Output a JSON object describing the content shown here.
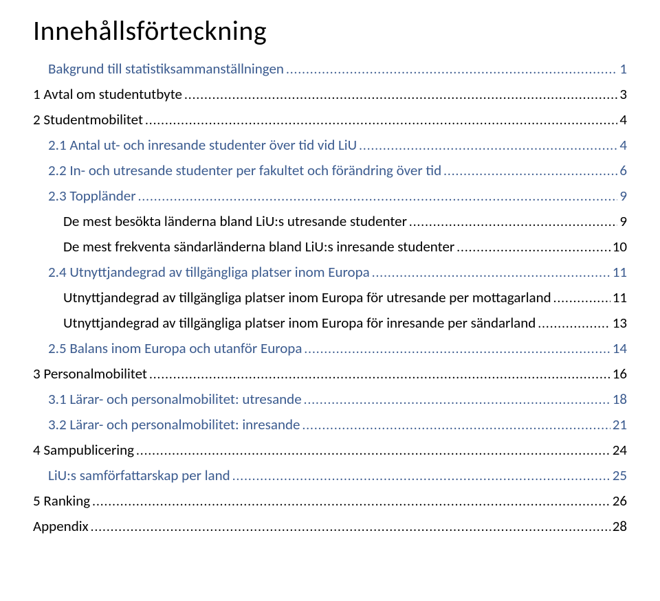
{
  "title": "Innehållsförteckning",
  "colors": {
    "link_blue": "#3b5b8f",
    "text_black": "#000000",
    "background": "#ffffff"
  },
  "typography": {
    "title_fontsize": 40,
    "row_fontsize": 21
  },
  "entries": [
    {
      "level": 1,
      "label": "Bakgrund till statistiksammanställningen",
      "page": "1"
    },
    {
      "level": 0,
      "label": "1 Avtal om studentutbyte",
      "page": "3"
    },
    {
      "level": 0,
      "label": "2 Studentmobilitet",
      "page": "4"
    },
    {
      "level": 1,
      "label": "2.1 Antal ut- och inresande studenter över tid vid LiU",
      "page": "4"
    },
    {
      "level": 1,
      "label": "2.2 In- och utresande studenter per fakultet och förändring över tid",
      "page": "6"
    },
    {
      "level": 1,
      "label": "2.3 Toppländer",
      "page": "9"
    },
    {
      "level": 2,
      "label": "De mest besökta länderna bland LiU:s utresande studenter",
      "page": "9"
    },
    {
      "level": 2,
      "label": "De mest frekventa sändarländerna bland LiU:s inresande studenter",
      "page": "10"
    },
    {
      "level": 1,
      "label": "2.4 Utnyttjandegrad av tillgängliga platser inom Europa",
      "page": "11"
    },
    {
      "level": 2,
      "label": "Utnyttjandegrad av tillgängliga platser inom Europa för utresande per mottagarland",
      "page": "11"
    },
    {
      "level": 2,
      "label": "Utnyttjandegrad av tillgängliga platser inom Europa för inresande per sändarland",
      "page": "13"
    },
    {
      "level": 1,
      "label": "2.5 Balans inom Europa och utanför Europa",
      "page": "14"
    },
    {
      "level": 0,
      "label": "3 Personalmobilitet",
      "page": "16"
    },
    {
      "level": 1,
      "label": "3.1 Lärar- och personalmobilitet: utresande",
      "page": "18"
    },
    {
      "level": 1,
      "label": "3.2 Lärar- och personalmobilitet: inresande",
      "page": "21"
    },
    {
      "level": 0,
      "label": "4 Sampublicering",
      "page": "24"
    },
    {
      "level": 1,
      "label": "LiU:s samförfattarskap per land",
      "page": "25"
    },
    {
      "level": 0,
      "label": "5 Ranking",
      "page": "26"
    },
    {
      "level": 0,
      "label": "Appendix",
      "page": "28"
    }
  ]
}
